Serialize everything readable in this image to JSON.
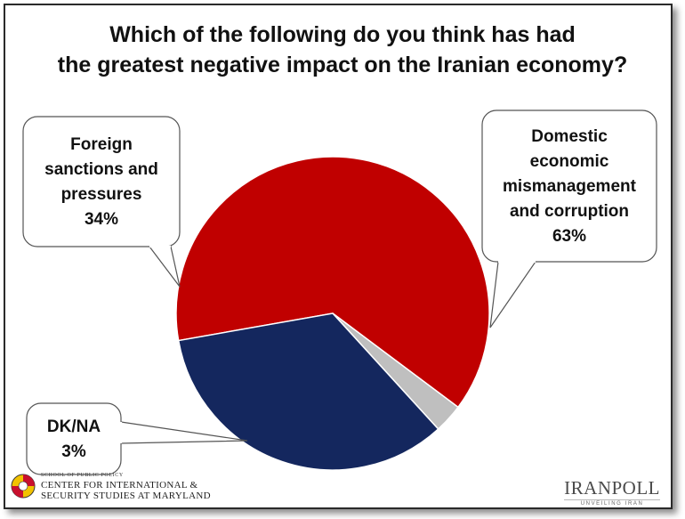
{
  "chart_data": {
    "type": "pie",
    "title_lines": [
      "Which of the following do you think has had",
      "the greatest negative impact on the Iranian economy?"
    ],
    "slices": [
      {
        "label_lines": [
          "Domestic",
          "economic",
          "mismanagement",
          "and corruption"
        ],
        "value": 63,
        "display": "63%",
        "color": "#c00000"
      },
      {
        "label_lines": [
          "DK/NA"
        ],
        "value": 3,
        "display": "3%",
        "color": "#bfbfbf"
      },
      {
        "label_lines": [
          "Foreign",
          "sanctions and",
          "pressures"
        ],
        "value": 34,
        "display": "34%",
        "color": "#14275e"
      }
    ]
  },
  "logos": {
    "left_small": "SCHOOL OF PUBLIC POLICY",
    "left_line1": "CENTER FOR INTERNATIONAL &",
    "left_line2": "SECURITY STUDIES AT MARYLAND",
    "right_name": "IRANPOLL",
    "right_tag": "UNVEILING IRAN"
  }
}
